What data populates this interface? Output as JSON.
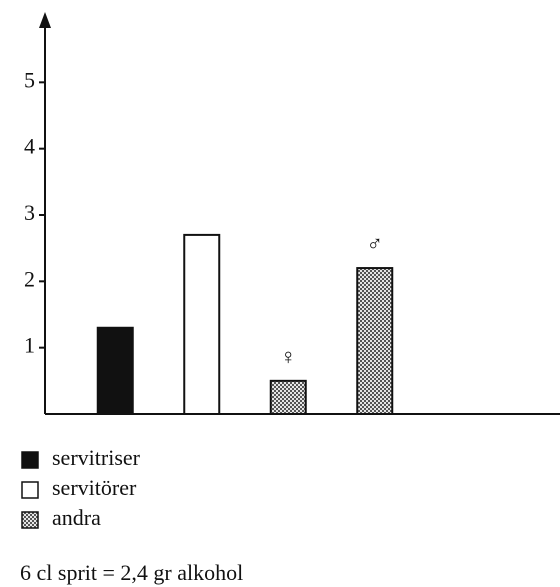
{
  "chart_data": {
    "type": "bar",
    "categories": [
      null,
      null,
      "♀",
      "♂"
    ],
    "series": [
      {
        "name": "servitriser",
        "color": "#111111",
        "values": [
          1.3,
          null,
          null,
          null
        ]
      },
      {
        "name": "servitörer",
        "color": "#ffffff",
        "values": [
          null,
          2.7,
          null,
          null
        ]
      },
      {
        "name": "andra",
        "color": "#9a9a9a",
        "pattern": "dots",
        "values": [
          null,
          null,
          0.5,
          2.2
        ]
      }
    ],
    "ylim": [
      0,
      6
    ],
    "yticks": [
      1,
      2,
      3,
      4,
      5
    ],
    "note": "6 cl sprit = 2,4 gr alkohol"
  }
}
